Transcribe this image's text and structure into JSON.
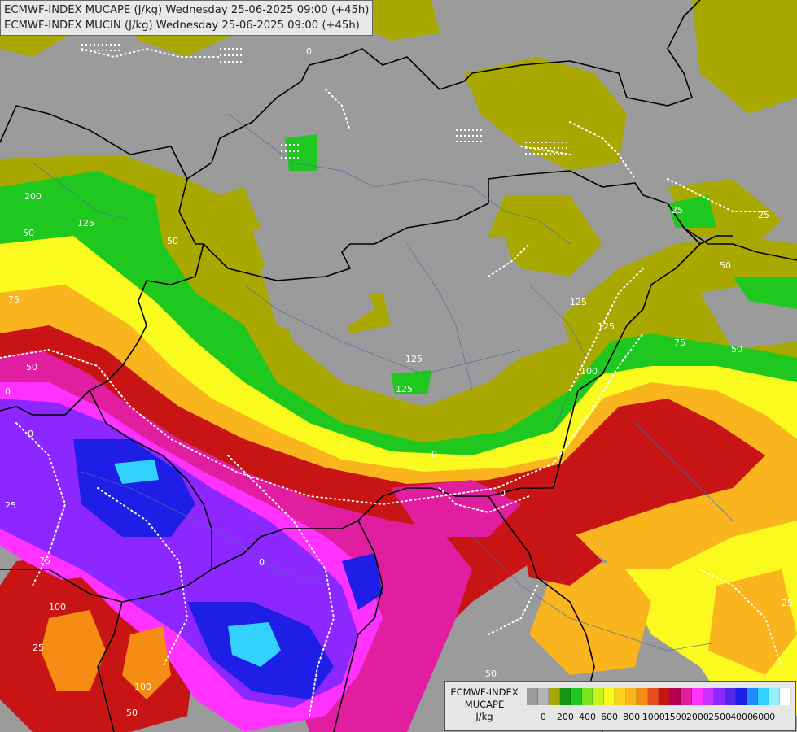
{
  "title": {
    "line1": "ECMWF-INDEX MUCAPE (J/kg) Wednesday 25-06-2025 09:00 (+45h)",
    "line2": "ECMWF-INDEX MUCIN (J/kg) Wednesday 25-06-2025 09:00 (+45h)"
  },
  "legend": {
    "line1": "ECMWF-INDEX",
    "line2": "MUCAPE",
    "unit": "J/kg",
    "colors": [
      "#9b9b9b",
      "#b4b4b4",
      "#a8a800",
      "#129612",
      "#1ec81e",
      "#78e61e",
      "#c8f01e",
      "#fafa1e",
      "#fad21e",
      "#fab41e",
      "#f58c14",
      "#e6501e",
      "#c81414",
      "#b40050",
      "#e11ea0",
      "#ff32ff",
      "#c832ff",
      "#8c28ff",
      "#5028e6",
      "#1e1ee6",
      "#1e8cff",
      "#32d2ff",
      "#96f0ff",
      "#ffffff"
    ],
    "ticks": [
      {
        "label": "0",
        "index": 1
      },
      {
        "label": "200",
        "index": 3
      },
      {
        "label": "400",
        "index": 5
      },
      {
        "label": "600",
        "index": 7
      },
      {
        "label": "800",
        "index": 9
      },
      {
        "label": "1000",
        "index": 11
      },
      {
        "label": "1500",
        "index": 13
      },
      {
        "label": "2000",
        "index": 15
      },
      {
        "label": "2500",
        "index": 17
      },
      {
        "label": "4000",
        "index": 19
      },
      {
        "label": "6000",
        "index": 21
      }
    ]
  },
  "cin_labels": [
    "0",
    "25",
    "50",
    "75",
    "100",
    "125",
    "200"
  ]
}
